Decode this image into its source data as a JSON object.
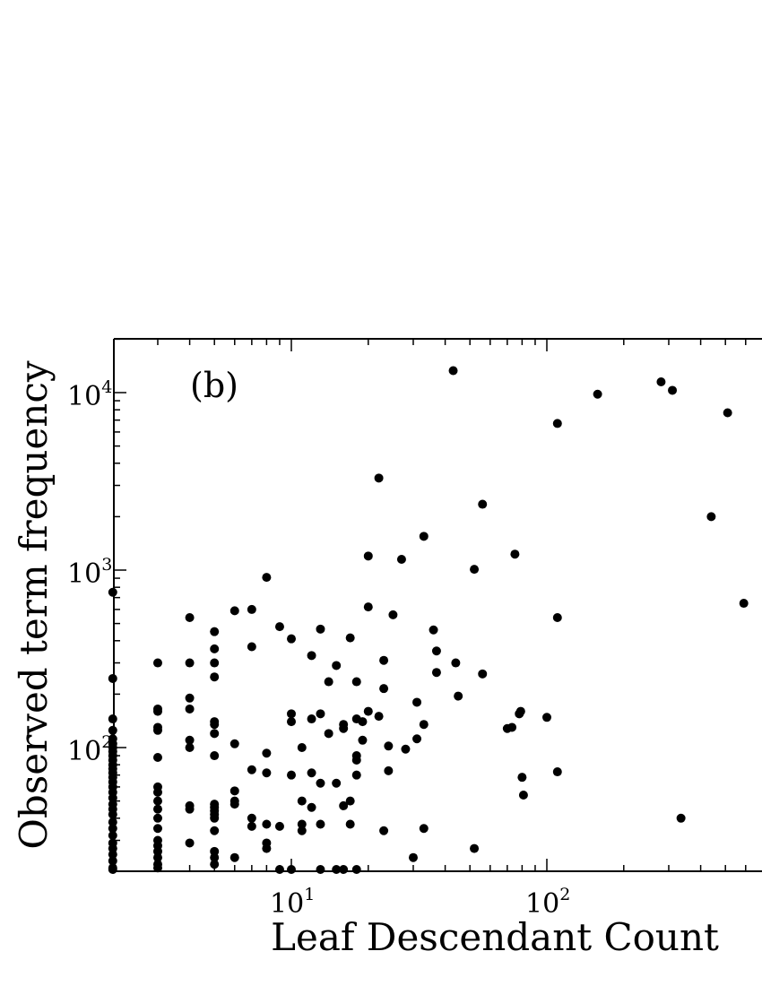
{
  "chart_data": {
    "type": "scatter",
    "panel_label": "(b)",
    "xlabel": "Leaf Descendant Count",
    "ylabel": "Observed term frequency",
    "xscale": "log",
    "yscale": "log",
    "xlim": [
      2,
      590
    ],
    "ylim": [
      20,
      20000
    ],
    "grid": false,
    "x_ticks": [
      {
        "base": "10",
        "exp": "1",
        "value": 10
      },
      {
        "base": "10",
        "exp": "2",
        "value": 100
      }
    ],
    "y_ticks": [
      {
        "base": "10",
        "exp": "2",
        "value": 100
      },
      {
        "base": "10",
        "exp": "3",
        "value": 1000
      },
      {
        "base": "10",
        "exp": "4",
        "value": 10000
      }
    ],
    "marker_color": "#000000",
    "points": [
      [
        2,
        750
      ],
      [
        2,
        245
      ],
      [
        2,
        145
      ],
      [
        2,
        125
      ],
      [
        2,
        112
      ],
      [
        2,
        105
      ],
      [
        2,
        100
      ],
      [
        2,
        95
      ],
      [
        2,
        90
      ],
      [
        2,
        85
      ],
      [
        2,
        80
      ],
      [
        2,
        76
      ],
      [
        2,
        72
      ],
      [
        2,
        68
      ],
      [
        2,
        64
      ],
      [
        2,
        60
      ],
      [
        2,
        56
      ],
      [
        2,
        52
      ],
      [
        2,
        48
      ],
      [
        2,
        45
      ],
      [
        2,
        42
      ],
      [
        2,
        38
      ],
      [
        2,
        35
      ],
      [
        2,
        32
      ],
      [
        2,
        29
      ],
      [
        2,
        27
      ],
      [
        2,
        25
      ],
      [
        2,
        23
      ],
      [
        2,
        21
      ],
      [
        2,
        20
      ],
      [
        3,
        300
      ],
      [
        3,
        165
      ],
      [
        3,
        160
      ],
      [
        3,
        130
      ],
      [
        3,
        125
      ],
      [
        3,
        88
      ],
      [
        3,
        60
      ],
      [
        3,
        56
      ],
      [
        3,
        50
      ],
      [
        3,
        45
      ],
      [
        3,
        40
      ],
      [
        3,
        35
      ],
      [
        3,
        30
      ],
      [
        3,
        28
      ],
      [
        3,
        26
      ],
      [
        3,
        24
      ],
      [
        3,
        22
      ],
      [
        3,
        21
      ],
      [
        4,
        540
      ],
      [
        4,
        300
      ],
      [
        4,
        190
      ],
      [
        4,
        165
      ],
      [
        4,
        110
      ],
      [
        4,
        100
      ],
      [
        4,
        47
      ],
      [
        4,
        45
      ],
      [
        4,
        29
      ],
      [
        5,
        450
      ],
      [
        5,
        360
      ],
      [
        5,
        300
      ],
      [
        5,
        250
      ],
      [
        5,
        140
      ],
      [
        5,
        135
      ],
      [
        5,
        120
      ],
      [
        5,
        90
      ],
      [
        5,
        48
      ],
      [
        5,
        46
      ],
      [
        5,
        44
      ],
      [
        5,
        42
      ],
      [
        5,
        40
      ],
      [
        5,
        34
      ],
      [
        5,
        26
      ],
      [
        5,
        24
      ],
      [
        5,
        22
      ],
      [
        6,
        590
      ],
      [
        6,
        105
      ],
      [
        6,
        57
      ],
      [
        6,
        50
      ],
      [
        6,
        48
      ],
      [
        6,
        24
      ],
      [
        7,
        600
      ],
      [
        7,
        370
      ],
      [
        7,
        75
      ],
      [
        7,
        40
      ],
      [
        7,
        36
      ],
      [
        8,
        910
      ],
      [
        8,
        93
      ],
      [
        8,
        72
      ],
      [
        8,
        37
      ],
      [
        8,
        29
      ],
      [
        8,
        27
      ],
      [
        9,
        480
      ],
      [
        9,
        36
      ],
      [
        9,
        20
      ],
      [
        10,
        410
      ],
      [
        10,
        155
      ],
      [
        10,
        140
      ],
      [
        10,
        70
      ],
      [
        10,
        20
      ],
      [
        11,
        100
      ],
      [
        11,
        50
      ],
      [
        11,
        37
      ],
      [
        11,
        34
      ],
      [
        12,
        330
      ],
      [
        12,
        145
      ],
      [
        12,
        72
      ],
      [
        12,
        46
      ],
      [
        13,
        465
      ],
      [
        13,
        155
      ],
      [
        13,
        63
      ],
      [
        13,
        37
      ],
      [
        13,
        20
      ],
      [
        14,
        235
      ],
      [
        14,
        120
      ],
      [
        15,
        290
      ],
      [
        15,
        63
      ],
      [
        15,
        20.5
      ],
      [
        16,
        135
      ],
      [
        16,
        128
      ],
      [
        16,
        47
      ],
      [
        16,
        20
      ],
      [
        17,
        415
      ],
      [
        17,
        50
      ],
      [
        17,
        37
      ],
      [
        18,
        235
      ],
      [
        18,
        145
      ],
      [
        18,
        90
      ],
      [
        18,
        85
      ],
      [
        18,
        70
      ],
      [
        18,
        20
      ],
      [
        19,
        140
      ],
      [
        19,
        110
      ],
      [
        20,
        1200
      ],
      [
        20,
        620
      ],
      [
        20,
        160
      ],
      [
        22,
        3300
      ],
      [
        22,
        150
      ],
      [
        23,
        310
      ],
      [
        23,
        215
      ],
      [
        23,
        34
      ],
      [
        24,
        102
      ],
      [
        24,
        74
      ],
      [
        25,
        560
      ],
      [
        27,
        1150
      ],
      [
        28,
        98
      ],
      [
        30,
        24
      ],
      [
        31,
        180
      ],
      [
        31,
        112
      ],
      [
        33,
        1550
      ],
      [
        33,
        135
      ],
      [
        33,
        35
      ],
      [
        36,
        460
      ],
      [
        37,
        350
      ],
      [
        37,
        265
      ],
      [
        43,
        13300
      ],
      [
        44,
        300
      ],
      [
        45,
        195
      ],
      [
        52,
        1010
      ],
      [
        52,
        27
      ],
      [
        56,
        2350
      ],
      [
        56,
        260
      ],
      [
        70,
        128
      ],
      [
        73,
        130
      ],
      [
        75,
        1230
      ],
      [
        78,
        155
      ],
      [
        79,
        160
      ],
      [
        80,
        68
      ],
      [
        81,
        54
      ],
      [
        100,
        148
      ],
      [
        110,
        6700
      ],
      [
        110,
        540
      ],
      [
        110,
        73
      ],
      [
        158,
        9800
      ],
      [
        280,
        11500
      ],
      [
        310,
        10300
      ],
      [
        335,
        40
      ],
      [
        440,
        2000
      ],
      [
        510,
        7700
      ],
      [
        590,
        650
      ]
    ]
  }
}
